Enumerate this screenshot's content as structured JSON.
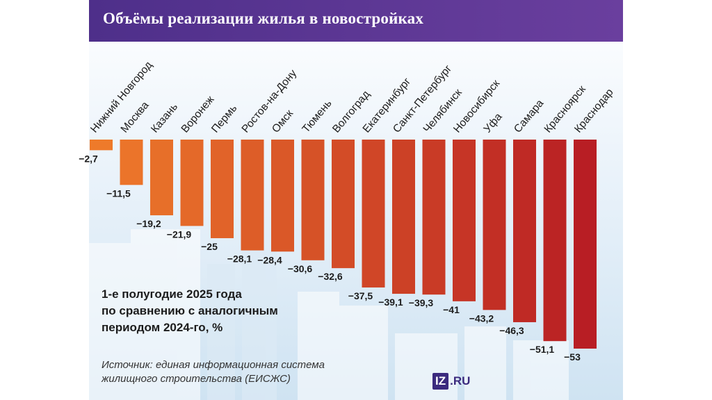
{
  "title": "Объёмы реализации жилья в новостройках",
  "subtitle": {
    "line1": "1-е полугодие 2025 года",
    "line2": "по сравнению с аналогичным",
    "line3": "периодом 2024-го, %"
  },
  "source": {
    "line1": "Источник: единая информационная система",
    "line2": "жилищного строительства (ЕИСЖС)"
  },
  "logo": {
    "mark": "IZ",
    "text": ".RU"
  },
  "chart_data": {
    "type": "bar",
    "categories": [
      "Нижний Новгород",
      "Москва",
      "Казань",
      "Воронеж",
      "Пермь",
      "Ростов-на-Дону",
      "Омск",
      "Тюмень",
      "Волгоград",
      "Екатеринбург",
      "Санкт-Петербург",
      "Челябинск",
      "Новосибирск",
      "Уфа",
      "Самара",
      "Красноярск",
      "Краснодар"
    ],
    "values": [
      -2.7,
      -11.5,
      -19.2,
      -21.9,
      -25,
      -28.1,
      -28.4,
      -30.6,
      -32.6,
      -37.5,
      -39.1,
      -39.3,
      -41,
      -43.2,
      -46.3,
      -51.1,
      -53
    ],
    "value_labels": [
      "−2,7",
      "−11,5",
      "−19,2",
      "−21,9",
      "−25",
      "−28,1",
      "−28,4",
      "−30,6",
      "−32,6",
      "−37,5",
      "−39,1",
      "−39,3",
      "−41",
      "−43,2",
      "−46,3",
      "−51,1",
      "−53"
    ],
    "ylim": [
      -53,
      0
    ],
    "colors": {
      "start": "#ee7a2a",
      "end": "#b81e24"
    },
    "grid": false,
    "legend": "none"
  }
}
